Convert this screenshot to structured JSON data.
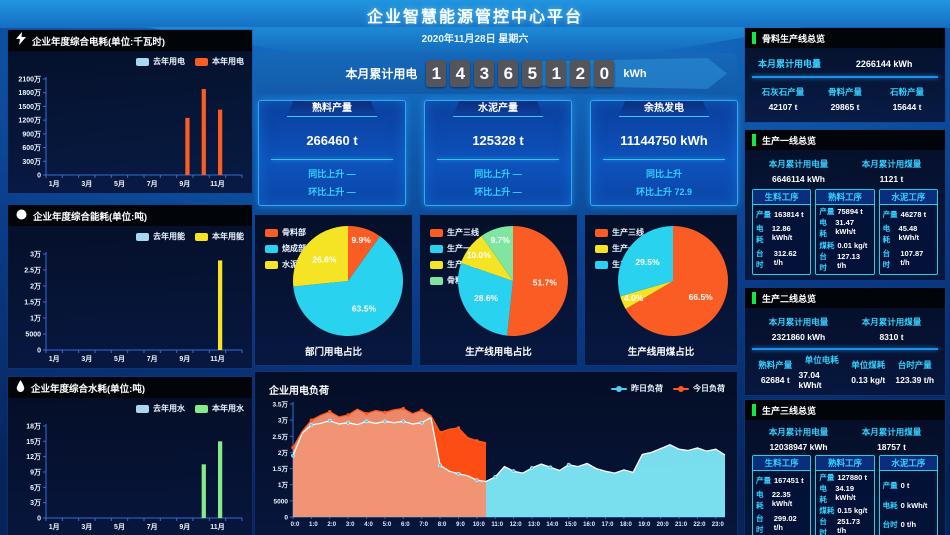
{
  "header": {
    "title": "企业智慧能源管控中心平台",
    "date": "2020年11月28日 星期六"
  },
  "counter": {
    "label": "本月累计用电",
    "digits": [
      "1",
      "4",
      "3",
      "6",
      "5",
      "1",
      "2",
      "0"
    ],
    "unit": "kWh"
  },
  "stat_cards": [
    {
      "title": "熟料产量",
      "value": "266460 t",
      "line1": "同比上升 —",
      "line2": "环比上升 —"
    },
    {
      "title": "水泥产量",
      "value": "125328 t",
      "line1": "同比上升 —",
      "line2": "环比上升 —"
    },
    {
      "title": "余热发电",
      "value": "11144750 kWh",
      "line1": "同比上升",
      "line2": "环比上升 72.9"
    }
  ],
  "colors": {
    "accent_cyan": "#35d0ff",
    "accent_green": "#17e649",
    "orange": "#fb5c23",
    "cyan": "#29d3f0",
    "yellow": "#f5e423",
    "green": "#7ee6a0",
    "lightblue": "#a8d8ef"
  },
  "chart_data": [
    {
      "type": "bar",
      "title": "企业年度综合电耗(单位:千瓦时)",
      "icon": "lightning",
      "categories": [
        "1月",
        "2月",
        "3月",
        "4月",
        "5月",
        "6月",
        "7月",
        "8月",
        "9月",
        "10月",
        "11月",
        "12月"
      ],
      "xtick_every": 2,
      "ymax": 2100,
      "ytick_labels": [
        "0",
        "300万",
        "600万",
        "900万",
        "1200万",
        "1500万",
        "1800万",
        "2100万"
      ],
      "series": [
        {
          "name": "去年用电",
          "color": "#a8d8ef",
          "values": [
            0,
            0,
            0,
            0,
            0,
            0,
            0,
            0,
            0,
            0,
            0,
            0
          ]
        },
        {
          "name": "本年用电",
          "color": "#fb5c23",
          "values": [
            0,
            0,
            0,
            0,
            0,
            0,
            0,
            0,
            1250,
            1880,
            1430,
            0
          ]
        }
      ]
    },
    {
      "type": "bar",
      "title": "企业年度综合能耗(单位:吨)",
      "icon": "circle",
      "categories": [
        "1月",
        "2月",
        "3月",
        "4月",
        "5月",
        "6月",
        "7月",
        "8月",
        "9月",
        "10月",
        "11月",
        "12月"
      ],
      "xtick_every": 2,
      "ymax": 30000,
      "ytick_labels": [
        "0",
        "5000",
        "1万",
        "1.5万",
        "2万",
        "2.5万",
        "3万"
      ],
      "series": [
        {
          "name": "去年用能",
          "color": "#a8d8ef",
          "values": [
            0,
            0,
            0,
            0,
            0,
            0,
            0,
            0,
            0,
            0,
            0,
            0
          ]
        },
        {
          "name": "本年用能",
          "color": "#f5e423",
          "values": [
            0,
            0,
            0,
            0,
            0,
            0,
            0,
            0,
            0,
            0,
            28000,
            0
          ]
        }
      ]
    },
    {
      "type": "bar",
      "title": "企业年度综合水耗(单位:吨)",
      "icon": "drop",
      "categories": [
        "1月",
        "2月",
        "3月",
        "4月",
        "5月",
        "6月",
        "7月",
        "8月",
        "9月",
        "10月",
        "11月",
        "12月"
      ],
      "xtick_every": 2,
      "ymax": 18,
      "ytick_labels": [
        "0",
        "3万",
        "6万",
        "9万",
        "12万",
        "15万",
        "18万"
      ],
      "series": [
        {
          "name": "去年用水",
          "color": "#a8d8ef",
          "values": [
            0,
            0,
            0,
            0,
            0,
            0,
            0,
            0,
            0,
            0,
            0,
            0
          ]
        },
        {
          "name": "本年用水",
          "color": "#86ea8b",
          "values": [
            0,
            0,
            0,
            0,
            0,
            0,
            0,
            0,
            0,
            10.5,
            15,
            0
          ]
        }
      ]
    },
    {
      "type": "pie",
      "title": "部门用电占比",
      "slices": [
        {
          "name": "骨料部",
          "value": 9.9,
          "color": "#fb5c23"
        },
        {
          "name": "烧成部",
          "value": 63.5,
          "color": "#29d3f0"
        },
        {
          "name": "水泥部",
          "value": 26.6,
          "color": "#f5e423"
        }
      ]
    },
    {
      "type": "pie",
      "title": "生产线用电占比",
      "slices": [
        {
          "name": "生产三线",
          "value": 51.7,
          "color": "#fb5c23"
        },
        {
          "name": "生产一线",
          "value": 28.6,
          "color": "#29d3f0"
        },
        {
          "name": "生产二线",
          "value": 10.0,
          "color": "#f5e423"
        },
        {
          "name": "骨料产线",
          "value": 9.7,
          "color": "#7ee6a0"
        }
      ]
    },
    {
      "type": "pie",
      "title": "生产线用煤占比",
      "slices": [
        {
          "name": "生产三线",
          "value": 66.5,
          "color": "#fb5c23"
        },
        {
          "name": "生产一线",
          "value": 4.0,
          "color": "#f5e423"
        },
        {
          "name": "生产二线",
          "value": 29.5,
          "color": "#29d3f0"
        }
      ]
    },
    {
      "type": "area",
      "title": "企业用电负荷",
      "ymax": 35000,
      "ytick_labels": [
        "0",
        "5000",
        "1万",
        "1.5万",
        "2万",
        "2.5万",
        "3万",
        "3.5万"
      ],
      "x_labels": [
        "0:0",
        "1:0",
        "2:0",
        "3:0",
        "4:0",
        "5:0",
        "6:0",
        "7:0",
        "8:0",
        "9:0",
        "10:0",
        "11:0",
        "12:0",
        "13:0",
        "14:0",
        "15:0",
        "16:0",
        "17:0",
        "18:0",
        "19:0",
        "20:0",
        "21:0",
        "22:0",
        "23:0"
      ],
      "xmax": 23.5,
      "series": [
        {
          "name": "昨日负荷",
          "color": "#4ecef2",
          "line": "#ffffff",
          "fill": "#7fe9f8",
          "points": [
            [
              0,
              19000
            ],
            [
              0.5,
              26000
            ],
            [
              1,
              28500
            ],
            [
              1.5,
              29000
            ],
            [
              2,
              29800
            ],
            [
              2.5,
              28800
            ],
            [
              3,
              29200
            ],
            [
              3.5,
              28600
            ],
            [
              4,
              29600
            ],
            [
              4.5,
              29000
            ],
            [
              5,
              29600
            ],
            [
              5.5,
              29200
            ],
            [
              6,
              29600
            ],
            [
              6.5,
              28800
            ],
            [
              7,
              29200
            ],
            [
              7.5,
              30800
            ],
            [
              8,
              16000
            ],
            [
              8.5,
              14200
            ],
            [
              9,
              13400
            ],
            [
              9.5,
              12800
            ],
            [
              10,
              11400
            ],
            [
              10.5,
              11000
            ],
            [
              11,
              12400
            ],
            [
              11.5,
              15600
            ],
            [
              12,
              14200
            ],
            [
              12.5,
              13600
            ],
            [
              13,
              15200
            ],
            [
              13.5,
              16400
            ],
            [
              14,
              15400
            ],
            [
              14.5,
              14400
            ],
            [
              15,
              16200
            ],
            [
              15.5,
              15600
            ],
            [
              16,
              16600
            ],
            [
              16.5,
              15000
            ],
            [
              17,
              14200
            ],
            [
              17.5,
              13600
            ],
            [
              18,
              14600
            ],
            [
              18.5,
              13800
            ],
            [
              19,
              19400
            ],
            [
              19.5,
              20000
            ],
            [
              20,
              21200
            ],
            [
              20.5,
              22400
            ],
            [
              21,
              21000
            ],
            [
              21.5,
              20600
            ],
            [
              22,
              21400
            ],
            [
              22.5,
              20400
            ],
            [
              23,
              21000
            ],
            [
              23.5,
              19200
            ]
          ]
        },
        {
          "name": "今日负荷",
          "color": "#ff5722",
          "line": "#ff5722",
          "fill": "#f88f6e",
          "diff_fill": "#ff4a10",
          "points": [
            [
              0,
              21500
            ],
            [
              0.5,
              26500
            ],
            [
              1,
              30000
            ],
            [
              1.5,
              31500
            ],
            [
              2,
              32600
            ],
            [
              2.5,
              31000
            ],
            [
              3,
              31600
            ],
            [
              3.5,
              33400
            ],
            [
              4,
              32000
            ],
            [
              4.5,
              33000
            ],
            [
              5,
              32400
            ],
            [
              5.5,
              33200
            ],
            [
              6,
              33600
            ],
            [
              6.5,
              32000
            ],
            [
              7,
              33000
            ],
            [
              7.5,
              31400
            ],
            [
              8,
              26200
            ],
            [
              8.5,
              27200
            ],
            [
              9,
              27600
            ],
            [
              9.5,
              24600
            ],
            [
              10,
              23600
            ],
            [
              10.5,
              23000
            ]
          ]
        }
      ]
    }
  ],
  "right_panels": [
    {
      "title": "骨料生产线总览",
      "top_stats": [
        {
          "label": "本月累计用电量",
          "value": "2266144 kWh"
        }
      ],
      "bottom_stats": [
        {
          "label": "石灰石产量",
          "value": "42107 t"
        },
        {
          "label": "骨料产量",
          "value": "29865 t"
        },
        {
          "label": "石粉产量",
          "value": "15644 t"
        }
      ]
    },
    {
      "title": "生产一线总览",
      "top_stats": [
        {
          "label": "本月累计用电量",
          "value": "6646114 kWh"
        },
        {
          "label": "本月累计用煤量",
          "value": "1121 t"
        }
      ],
      "processes": [
        {
          "title": "生料工序",
          "rows": [
            {
              "label": "产量",
              "value": "163814 t"
            },
            {
              "label": "电耗",
              "value": "12.86 kWh/t"
            },
            {
              "label": "台时",
              "value": "312.62 t/h"
            }
          ]
        },
        {
          "title": "熟料工序",
          "rows": [
            {
              "label": "产量",
              "value": "75894 t"
            },
            {
              "label": "电耗",
              "value": "31.47 kWh/t"
            },
            {
              "label": "煤耗",
              "value": "0.01 kg/t"
            },
            {
              "label": "台时",
              "value": "127.13 t/h"
            }
          ]
        },
        {
          "title": "水泥工序",
          "rows": [
            {
              "label": "产量",
              "value": "46278 t"
            },
            {
              "label": "电耗",
              "value": "45.48 kWh/t"
            },
            {
              "label": "台时",
              "value": "107.87 t/h"
            }
          ]
        }
      ]
    },
    {
      "title": "生产二线总览",
      "top_stats": [
        {
          "label": "本月累计用电量",
          "value": "2321860 kWh"
        },
        {
          "label": "本月累计用煤量",
          "value": "8310 t"
        }
      ],
      "bottom_stats": [
        {
          "label": "熟料产量",
          "value": "62684 t"
        },
        {
          "label": "单位电耗",
          "value": "37.04 kWh/t"
        },
        {
          "label": "单位煤耗",
          "value": "0.13 kg/t"
        },
        {
          "label": "台时产量",
          "value": "123.39 t/h"
        }
      ]
    },
    {
      "title": "生产三线总览",
      "top_stats": [
        {
          "label": "本月累计用电量",
          "value": "12038947 kWh"
        },
        {
          "label": "本月累计用煤量",
          "value": "18757 t"
        }
      ],
      "processes": [
        {
          "title": "生料工序",
          "rows": [
            {
              "label": "产量",
              "value": "167451 t"
            },
            {
              "label": "电耗",
              "value": "22.35 kWh/t"
            },
            {
              "label": "台时",
              "value": "299.02 t/h"
            }
          ]
        },
        {
          "title": "熟料工序",
          "rows": [
            {
              "label": "产量",
              "value": "127880 t"
            },
            {
              "label": "电耗",
              "value": "34.19 kWh/t"
            },
            {
              "label": "煤耗",
              "value": "0.15 kg/t"
            },
            {
              "label": "台时",
              "value": "251.73 t/h"
            }
          ]
        },
        {
          "title": "水泥工序",
          "rows": [
            {
              "label": "产量",
              "value": "0 t"
            },
            {
              "label": "电耗",
              "value": "0 kWh/t"
            },
            {
              "label": "台时",
              "value": "0 t/h"
            }
          ]
        }
      ]
    }
  ]
}
